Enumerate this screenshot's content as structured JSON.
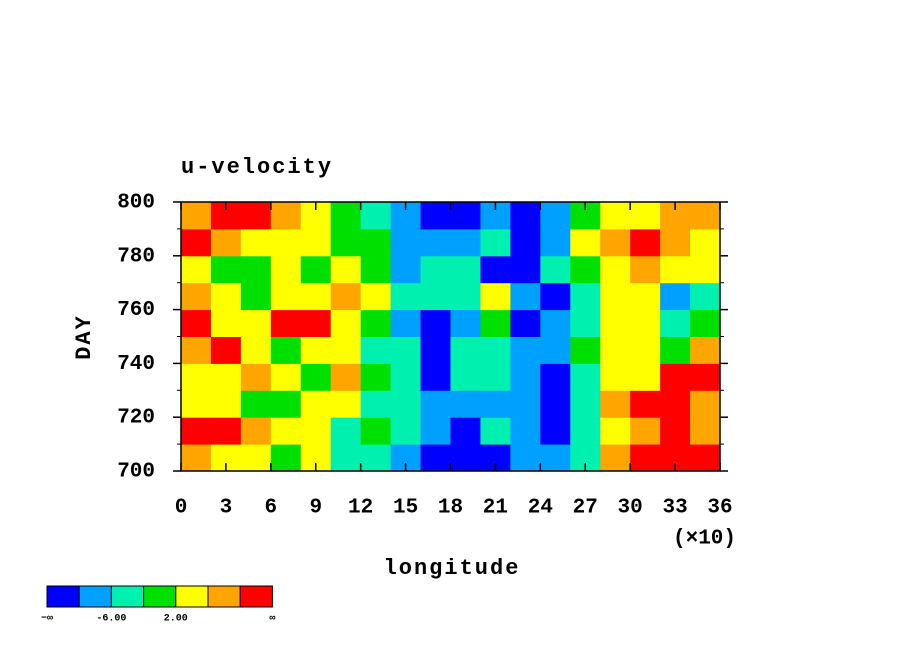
{
  "chart_data": {
    "type": "contourf",
    "title": "u-velocity",
    "xlabel": "longitude",
    "ylabel": "DAY",
    "x_multiplier_label": "(×10)",
    "xlim": [
      0,
      360
    ],
    "ylim": [
      700,
      800
    ],
    "xticks": [
      {
        "value": 0,
        "label": "0"
      },
      {
        "value": 30,
        "label": "3"
      },
      {
        "value": 60,
        "label": "6"
      },
      {
        "value": 90,
        "label": "9"
      },
      {
        "value": 120,
        "label": "12"
      },
      {
        "value": 150,
        "label": "15"
      },
      {
        "value": 180,
        "label": "18"
      },
      {
        "value": 210,
        "label": "21"
      },
      {
        "value": 240,
        "label": "24"
      },
      {
        "value": 270,
        "label": "27"
      },
      {
        "value": 300,
        "label": "30"
      },
      {
        "value": 330,
        "label": "33"
      },
      {
        "value": 360,
        "label": "36"
      }
    ],
    "yticks": [
      700,
      720,
      740,
      760,
      780,
      800
    ],
    "y_minor_ticks": [
      710,
      730,
      750,
      770,
      790
    ],
    "x": [
      10,
      30,
      50,
      70,
      90,
      110,
      130,
      150,
      170,
      190,
      210,
      230,
      250,
      270,
      290,
      310,
      330,
      350
    ],
    "y": [
      705,
      715,
      725,
      735,
      745,
      755,
      765,
      775,
      785,
      795
    ],
    "z": [
      [
        8,
        4,
        2,
        -2,
        3,
        -4,
        -3,
        -7,
        -11,
        -12,
        -11,
        -10,
        -8,
        -4,
        6,
        10,
        12,
        11
      ],
      [
        12,
        10,
        6,
        3,
        2,
        -3,
        -2,
        -6,
        -9,
        -11,
        -6,
        -8,
        -12,
        -5,
        4,
        8,
        12,
        9
      ],
      [
        5,
        3,
        1,
        -1,
        4,
        2,
        -3,
        -4,
        -8,
        -7,
        -9,
        -8,
        -11,
        -4,
        7,
        12,
        11,
        6
      ],
      [
        2,
        4,
        7,
        3,
        -1,
        8,
        -2,
        -3,
        -11,
        -6,
        -4,
        -8,
        -12,
        -3,
        3,
        5,
        13,
        10
      ],
      [
        6,
        11,
        3,
        -1,
        2,
        4,
        -4,
        -3,
        -12,
        -5,
        -3,
        -9,
        -10,
        -1,
        2,
        4,
        -2,
        6
      ],
      [
        11,
        4,
        2,
        11,
        12,
        3,
        -1,
        -8,
        -11,
        -7,
        -2,
        -11,
        -9,
        -3,
        5,
        3,
        -4,
        1
      ],
      [
        9,
        3,
        -1,
        4,
        5,
        8,
        3,
        -4,
        -6,
        -3,
        2,
        -7,
        -11,
        -4,
        4,
        2,
        -8,
        -5
      ],
      [
        3,
        1,
        -2,
        2,
        -1,
        3,
        -2,
        -9,
        -6,
        -4,
        -12,
        -11,
        -6,
        1,
        5,
        8,
        4,
        2
      ],
      [
        11,
        9,
        5,
        3,
        2,
        1,
        -1,
        -8,
        -10,
        -7,
        -3,
        -11,
        -9,
        2,
        9,
        11,
        6,
        4
      ],
      [
        9,
        12,
        11,
        7,
        4,
        -1,
        -4,
        -7,
        -12,
        -11,
        -9,
        -12,
        -8,
        -2,
        4,
        5,
        7,
        9
      ]
    ],
    "levels": [
      -10,
      -6,
      -2,
      2,
      6,
      10
    ],
    "colors": [
      "#0000ff",
      "#00a0ff",
      "#00f0b0",
      "#00e000",
      "#ffff00",
      "#ffa500",
      "#ff0000"
    ],
    "colorbar": {
      "min_label": "−∞",
      "max_label": "∞",
      "ticks": [
        {
          "value": -6,
          "label": "-6.00"
        },
        {
          "value": 2,
          "label": "2.00"
        }
      ]
    }
  }
}
